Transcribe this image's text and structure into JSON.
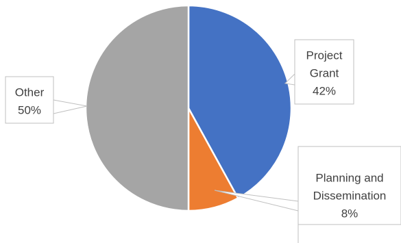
{
  "chart_data": {
    "type": "pie",
    "title": "",
    "slices": [
      {
        "name": "Project Grant",
        "value": 42,
        "label": [
          "Project",
          "Grant",
          "42%"
        ],
        "color": "#4472C4"
      },
      {
        "name": "Planning and Dissemination",
        "value": 8,
        "label": [
          "Planning and",
          "Dissemination",
          "8%"
        ],
        "color": "#ED7D31"
      },
      {
        "name": "Other",
        "value": 50,
        "label": [
          "Other",
          "50%"
        ],
        "color": "#A5A5A5"
      }
    ],
    "start_angle": "12 o'clock",
    "direction": "clockwise",
    "legend": "none",
    "data_labels": "callouts"
  },
  "colors": {
    "slice_border": "#FFFFFF",
    "callout_border": "#BFBFBF",
    "leader_line": "#BFBFBF",
    "label_text": "#404040"
  }
}
